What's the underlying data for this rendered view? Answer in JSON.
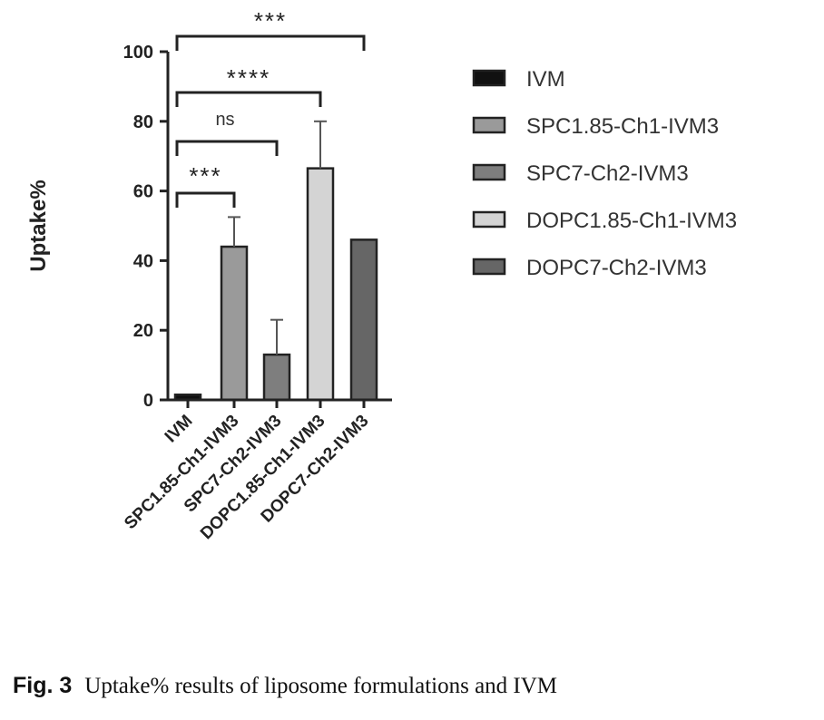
{
  "chart_data": {
    "type": "bar",
    "categories": [
      "IVM",
      "SPC1.85-Ch1-IVM3",
      "SPC7-Ch2-IVM3",
      "DOPC1.85-Ch1-IVM3",
      "DOPC7-Ch2-IVM3"
    ],
    "values": [
      1.5,
      44,
      13,
      66.5,
      46
    ],
    "error_upper": [
      0.3,
      8.5,
      10,
      13.5,
      0.3
    ],
    "colors": [
      "#111111",
      "#9a9a9a",
      "#7e7e7e",
      "#d4d4d4",
      "#666666"
    ],
    "ylabel": "Uptake%",
    "xlabel": "",
    "ylim": [
      0,
      100
    ],
    "yticks": [
      "0",
      "20",
      "40",
      "60",
      "80",
      "100"
    ],
    "legend": [
      "IVM",
      "SPC1.85-Ch1-IVM3",
      "SPC7-Ch2-IVM3",
      "DOPC1.85-Ch1-IVM3",
      "DOPC7-Ch2-IVM3"
    ],
    "legend_position": "right",
    "significance": [
      {
        "from": 0,
        "to": 1,
        "label": "***"
      },
      {
        "from": 0,
        "to": 2,
        "label": "ns"
      },
      {
        "from": 0,
        "to": 3,
        "label": "****"
      },
      {
        "from": 0,
        "to": 4,
        "label": "***"
      }
    ]
  },
  "caption": {
    "label": "Fig. 3",
    "text": "Uptake% results of liposome formulations and IVM"
  }
}
